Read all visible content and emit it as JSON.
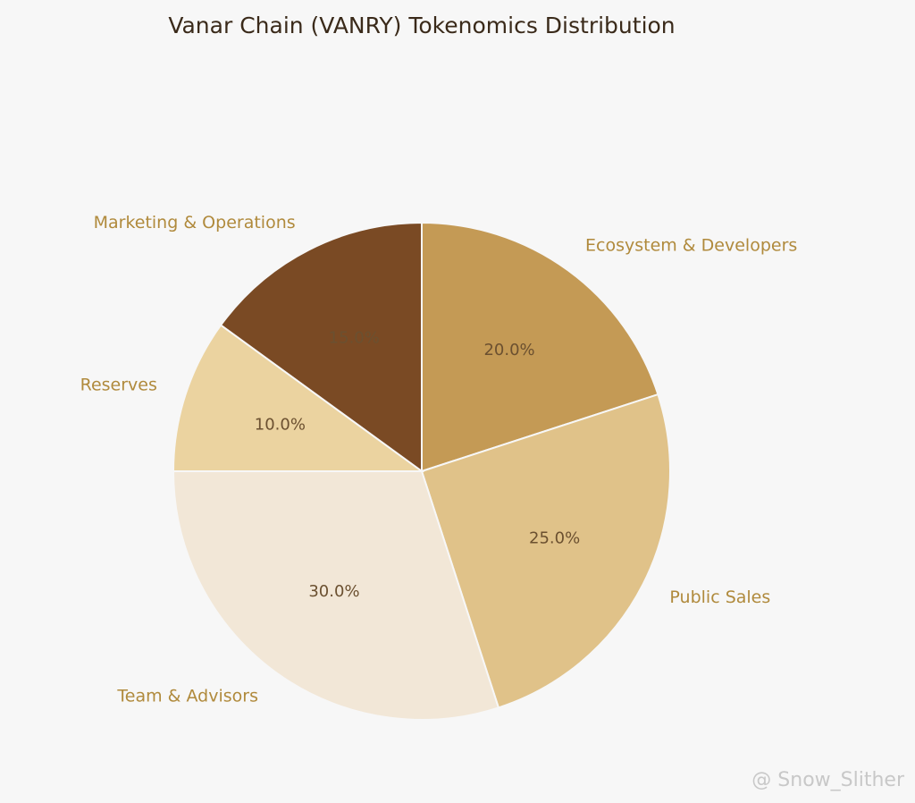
{
  "chart_data": {
    "type": "pie",
    "title": "Vanar Chain (VANRY) Tokenomics Distribution",
    "categories": [
      "Marketing & Operations",
      "Ecosystem & Developers",
      "Public Sales",
      "Team & Advisors",
      "Reserves"
    ],
    "values": [
      15,
      20,
      25,
      30,
      10
    ],
    "value_labels": [
      "15.0%",
      "20.0%",
      "25.0%",
      "30.0%",
      "10.0%"
    ],
    "colors": [
      "#7a4a24",
      "#c49a55",
      "#e0c289",
      "#f2e7d7",
      "#ebd3a0"
    ],
    "watermark": "@ Snow_Slither"
  }
}
